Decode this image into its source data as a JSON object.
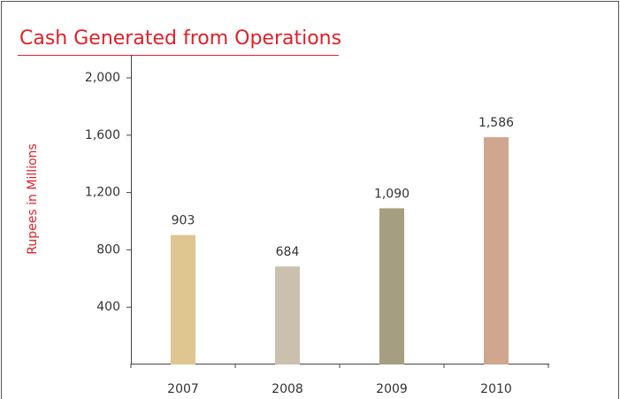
{
  "chart_data": {
    "type": "bar",
    "title": "Cash Generated from Operations",
    "y_label": "Rupees in Millions",
    "categories": [
      "2007",
      "2008",
      "2009",
      "2010"
    ],
    "values": [
      903,
      684,
      1090,
      1586
    ],
    "value_labels": [
      "903",
      "684",
      "1,090",
      "1,586"
    ],
    "colors": [
      "#dfc58f",
      "#cbc0ae",
      "#a69e81",
      "#cfa68e"
    ],
    "ylim": [
      0,
      2000
    ],
    "yticks": [
      {
        "value": 400,
        "label": "400"
      },
      {
        "value": 800,
        "label": "800"
      },
      {
        "value": 1200,
        "label": "1,200"
      },
      {
        "value": 1600,
        "label": "1,600"
      },
      {
        "value": 2000,
        "label": "2,000"
      }
    ]
  }
}
